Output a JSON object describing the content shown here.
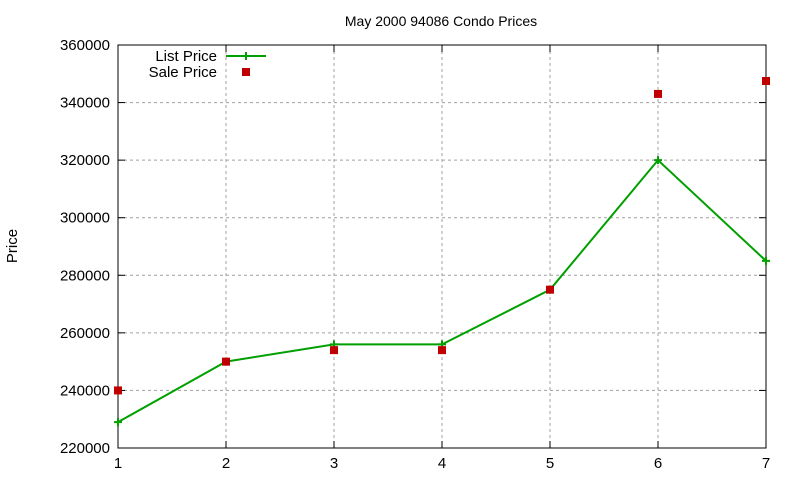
{
  "chart_data": {
    "type": "line",
    "title": "May 2000 94086 Condo Prices",
    "xlabel": "",
    "ylabel": "Price",
    "x": [
      1,
      2,
      3,
      4,
      5,
      6,
      7
    ],
    "xlim": [
      1,
      7
    ],
    "ylim": [
      220000,
      360000
    ],
    "xticks": [
      "1",
      "2",
      "3",
      "4",
      "5",
      "6",
      "7"
    ],
    "yticks": [
      "220000",
      "240000",
      "260000",
      "280000",
      "300000",
      "320000",
      "340000",
      "360000"
    ],
    "grid": true,
    "legend_position": "top-left",
    "series": [
      {
        "name": "List Price",
        "style": "line+cross",
        "color": "#00a000",
        "values": [
          229000,
          250000,
          256000,
          256000,
          275000,
          320000,
          285000
        ]
      },
      {
        "name": "Sale Price",
        "style": "square-points",
        "color": "#c00000",
        "values": [
          240000,
          250000,
          254000,
          254000,
          275000,
          343000,
          347500
        ]
      }
    ]
  }
}
